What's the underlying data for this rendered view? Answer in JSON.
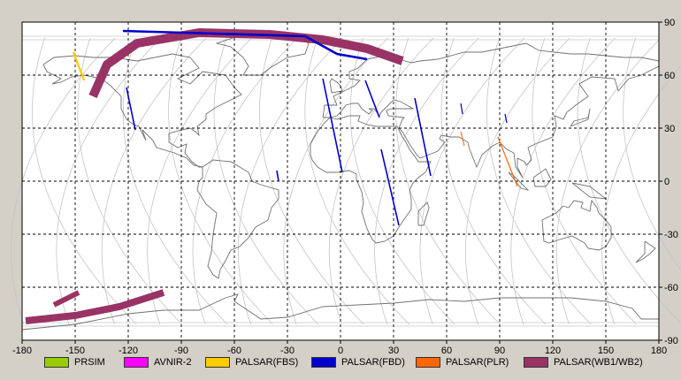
{
  "map": {
    "x_ticks": [
      "-180",
      "-150",
      "-120",
      "-90",
      "-60",
      "-30",
      "0",
      "30",
      "60",
      "90",
      "120",
      "150",
      "180"
    ],
    "y_ticks": [
      "90",
      "60",
      "30",
      "0",
      "-30",
      "-60",
      "-90"
    ],
    "lon_range": [
      -180,
      180
    ],
    "lat_range": [
      -90,
      90
    ],
    "grid": true
  },
  "legend": [
    {
      "label": "PRSIM",
      "color": "#99cc00"
    },
    {
      "label": "AVNIR-2",
      "color": "#ff00ff"
    },
    {
      "label": "PALSAR(FBS)",
      "color": "#ffcc00"
    },
    {
      "label": "PALSAR(FBD)",
      "color": "#0000cc"
    },
    {
      "label": "PALSAR(PLR)",
      "color": "#ff6600"
    },
    {
      "label": "PALSAR(WB1/WB2)",
      "color": "#993366"
    }
  ],
  "chart_data": {
    "type": "map",
    "x_ticks": [
      -180,
      -150,
      -120,
      -90,
      -60,
      -30,
      0,
      30,
      60,
      90,
      120,
      150,
      180
    ],
    "y_ticks": [
      90,
      60,
      30,
      0,
      -30,
      -60,
      -90
    ],
    "xlim": [
      -180,
      180
    ],
    "ylim": [
      -90,
      90
    ],
    "grid": true,
    "series": [
      {
        "name": "PALSAR(WB1/WB2)",
        "color": "#993366",
        "swaths": [
          {
            "path": [
              [
                -140,
                48
              ],
              [
                -132,
                66
              ],
              [
                -115,
                78
              ],
              [
                -80,
                84
              ],
              [
                -40,
                83
              ],
              [
                -10,
                80
              ],
              [
                15,
                75
              ],
              [
                35,
                68
              ]
            ],
            "width": 5
          },
          {
            "path": [
              [
                -178,
                -79
              ],
              [
                -150,
                -76
              ],
              [
                -125,
                -71
              ],
              [
                -100,
                -63
              ]
            ],
            "width": 4
          },
          {
            "path": [
              [
                -162,
                -70
              ],
              [
                -148,
                -63
              ]
            ],
            "width": 3
          }
        ]
      },
      {
        "name": "PALSAR(FBD)",
        "color": "#0000cc",
        "swaths": [
          {
            "path": [
              [
                -123,
                85
              ],
              [
                -20,
                82
              ],
              [
                -2,
                72
              ],
              [
                15,
                69
              ]
            ],
            "width": 1.3
          },
          {
            "path": [
              [
                -121,
                53
              ],
              [
                -116,
                29
              ]
            ],
            "width": 0.8
          },
          {
            "path": [
              [
                -36,
                6
              ],
              [
                -35,
                0
              ]
            ],
            "width": 0.8
          },
          {
            "path": [
              [
                -10,
                58
              ],
              [
                1,
                5
              ]
            ],
            "width": 0.8
          },
          {
            "path": [
              [
                14,
                57
              ],
              [
                22,
                36
              ]
            ],
            "width": 0.8
          },
          {
            "path": [
              [
                23,
                18
              ],
              [
                33,
                -25
              ]
            ],
            "width": 0.8
          },
          {
            "path": [
              [
                42,
                47
              ],
              [
                51,
                3
              ]
            ],
            "width": 0.8
          },
          {
            "path": [
              [
                68,
                44
              ],
              [
                69,
                38
              ]
            ],
            "width": 0.6
          },
          {
            "path": [
              [
                93,
                38
              ],
              [
                94,
                33
              ]
            ],
            "width": 0.6
          }
        ]
      },
      {
        "name": "PALSAR(FBS)",
        "color": "#ffcc00",
        "swaths": [
          {
            "path": [
              [
                -151,
                73
              ],
              [
                -145,
                57
              ]
            ],
            "width": 1.2
          }
        ]
      },
      {
        "name": "PALSAR(PLR)",
        "color": "#ff6600",
        "swaths": [
          {
            "path": [
              [
                68,
                28
              ],
              [
                70,
                20
              ]
            ],
            "width": 0.5
          },
          {
            "path": [
              [
                89,
                25
              ],
              [
                100,
                -3
              ]
            ],
            "width": 0.6
          }
        ]
      }
    ]
  }
}
